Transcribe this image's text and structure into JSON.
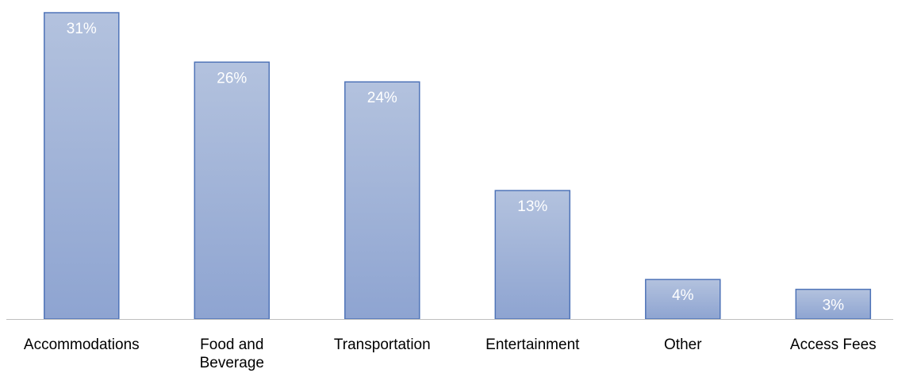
{
  "chart_data": {
    "type": "bar",
    "categories": [
      [
        "Accommodations"
      ],
      [
        "Food and",
        "Beverage"
      ],
      [
        "Transportation"
      ],
      [
        "Entertainment"
      ],
      [
        "Other"
      ],
      [
        "Access Fees"
      ]
    ],
    "values": [
      31,
      26,
      24,
      13,
      4,
      3
    ],
    "data_labels": [
      "31%",
      "26%",
      "24%",
      "13%",
      "4%",
      "3%"
    ],
    "title": "",
    "xlabel": "",
    "ylabel": "",
    "unit": "%",
    "ylim": [
      0,
      31
    ],
    "grid": false,
    "legend": "none",
    "colors": {
      "bar_top": "#b3c2de",
      "bar_bottom": "#8ea4d1",
      "bar_stroke": "#4f74b8",
      "axis": "#bfbfbf",
      "data_label": "#ffffff",
      "category_label": "#000000"
    }
  }
}
